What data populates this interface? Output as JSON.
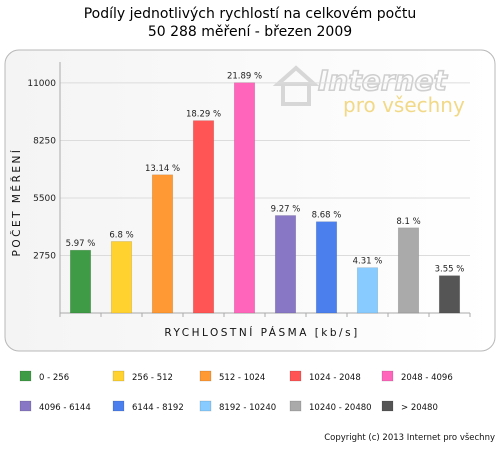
{
  "chart_data": {
    "type": "bar",
    "title": "Podíly jednotlivých rychlostí na celkovém počtu",
    "subtitle": "50 288 měření - březen 2009",
    "xlabel": "RYCHLOSTNÍ PÁSMA [kb/s]",
    "ylabel": "POČET MĚŘENÍ",
    "yticks": [
      2750,
      5500,
      8250,
      11000
    ],
    "ylim": [
      0,
      12000
    ],
    "grid": true,
    "legend_position": "bottom",
    "categories": [
      "0 - 256",
      "256 - 512",
      "512 - 1024",
      "1024 - 2048",
      "2048 - 4096",
      "4096 - 6144",
      "6144 - 8192",
      "8192 - 10240",
      "10240 - 20480",
      "> 20480"
    ],
    "values": [
      3002,
      3420,
      6608,
      9198,
      11008,
      4662,
      4365,
      2167,
      4073,
      1785
    ],
    "labels": [
      "5.97 %",
      "6.8 %",
      "13.14 %",
      "18.29 %",
      "21.89 %",
      "9.27 %",
      "8.68 %",
      "4.31 %",
      "8.1 %",
      "3.55 %"
    ],
    "colors": [
      "#3f9b45",
      "#ffd230",
      "#ff9933",
      "#ff5555",
      "#ff66bb",
      "#8877c4",
      "#4b7fee",
      "#88ccff",
      "#aaaaaa",
      "#555555"
    ]
  },
  "watermark": {
    "line1": "Internet",
    "line2": "pro všechny"
  },
  "copyright": "Copyright (c) 2013 Internet pro všechny"
}
